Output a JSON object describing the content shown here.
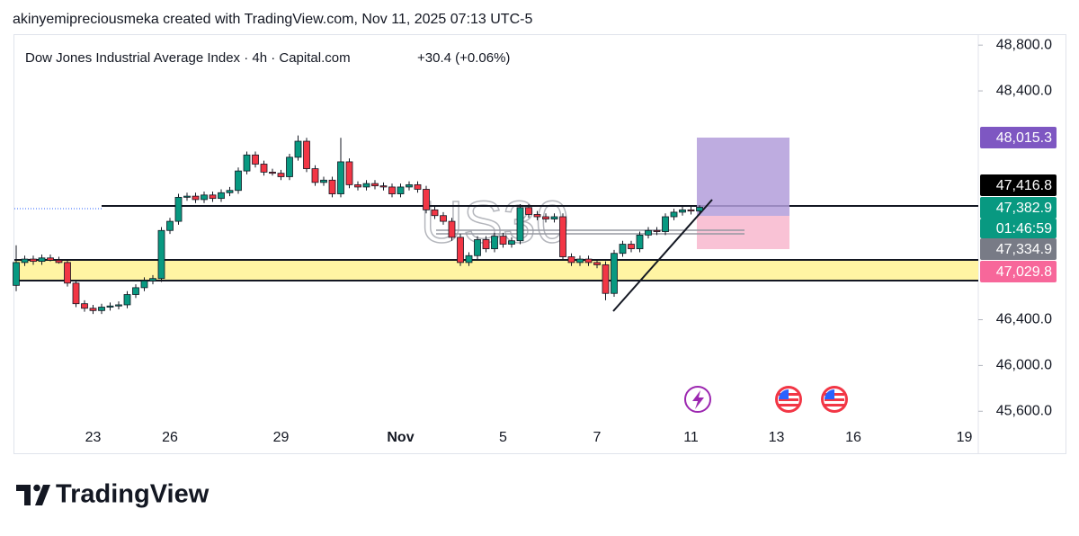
{
  "chart_data": {
    "type": "candlestick",
    "caption": "akinyemipreciousmeka created with TradingView.com, Nov 11, 2025 07:13 UTC-5",
    "title": "Dow Jones Industrial Average Index · 4h · Capital.com",
    "change": "+30.4 (+0.06%)",
    "watermark": "US30",
    "up_color": "#089981",
    "down_color": "#f23645",
    "categories": [
      null,
      null,
      null,
      null,
      null,
      null,
      null,
      null,
      null,
      "23",
      null,
      null,
      null,
      null,
      null,
      null,
      null,
      null,
      "26",
      null,
      null,
      null,
      null,
      null,
      null,
      null,
      null,
      null,
      null,
      null,
      null,
      "29",
      null,
      null,
      null,
      null,
      null,
      null,
      null,
      null,
      null,
      null,
      null,
      null,
      null,
      "Nov",
      null,
      null,
      null,
      null,
      null,
      null,
      null,
      null,
      null,
      null,
      null,
      "5",
      null,
      null,
      null,
      null,
      null,
      null,
      null,
      null,
      null,
      null,
      "7",
      null,
      null,
      null,
      null,
      null,
      null,
      null,
      null,
      null,
      null,
      "11",
      null,
      null,
      null,
      null,
      null,
      null,
      null,
      null,
      null,
      "13",
      null,
      null,
      null,
      null,
      null,
      null,
      null,
      null,
      "16",
      null,
      null,
      null,
      null,
      null,
      null,
      null,
      null,
      null,
      null,
      null,
      null,
      "19"
    ],
    "open": [
      46700,
      46900,
      46930,
      46910,
      46940,
      46920,
      46900,
      46720,
      46540,
      46500,
      46480,
      46510,
      46520,
      46530,
      46620,
      46680,
      46740,
      46760,
      47180,
      47260,
      47470,
      47480,
      47450,
      47490,
      47460,
      47510,
      47530,
      47700,
      47840,
      47760,
      47690,
      47680,
      47650,
      47820,
      47960,
      47720,
      47600,
      47620,
      47500,
      47780,
      47580,
      47560,
      47590,
      47570,
      47560,
      47500,
      47560,
      47580,
      47540,
      47360,
      47310,
      47260,
      47120,
      46900,
      46960,
      47100,
      47020,
      47130,
      47060,
      47090,
      47380,
      47320,
      47300,
      47280,
      47300,
      46950,
      46900,
      46930,
      46900,
      46880,
      46630,
      46980,
      47060,
      47020,
      47140,
      47180,
      47170,
      47300,
      47340,
      47360,
      47350,
      null,
      null,
      null,
      null,
      null,
      null,
      null,
      null,
      null,
      null,
      null,
      null,
      null,
      null,
      null,
      null,
      null,
      null,
      null,
      null,
      null,
      null,
      null,
      null,
      null,
      null,
      null,
      null,
      null,
      null,
      null
    ],
    "high": [
      47050,
      46960,
      46960,
      46970,
      46970,
      46950,
      46930,
      46750,
      46570,
      46530,
      46540,
      46550,
      46560,
      46650,
      46710,
      46770,
      46790,
      47210,
      47290,
      47500,
      47510,
      47510,
      47520,
      47520,
      47540,
      47560,
      47730,
      47870,
      47870,
      47790,
      47720,
      47710,
      47850,
      48010,
      47990,
      47750,
      47650,
      47650,
      47990,
      47810,
      47610,
      47620,
      47620,
      47600,
      47590,
      47590,
      47610,
      47610,
      47570,
      47390,
      47340,
      47290,
      47150,
      46990,
      47130,
      47130,
      47160,
      47160,
      47120,
      47410,
      47410,
      47350,
      47330,
      47330,
      47330,
      46980,
      46960,
      46960,
      46930,
      46910,
      47010,
      47090,
      47090,
      47170,
      47210,
      47210,
      47330,
      47370,
      47390,
      47390,
      47400,
      null,
      null,
      null,
      null,
      null,
      null,
      null,
      null,
      null,
      null,
      null,
      null,
      null,
      null,
      null,
      null,
      null,
      null,
      null,
      null,
      null,
      null,
      null,
      null,
      null,
      null,
      null,
      null,
      null,
      null,
      null
    ],
    "low": [
      46650,
      46870,
      46880,
      46880,
      46910,
      46890,
      46690,
      46510,
      46470,
      46450,
      46450,
      46480,
      46490,
      46500,
      46590,
      46650,
      46710,
      46730,
      47150,
      47230,
      47440,
      47420,
      47420,
      47430,
      47430,
      47480,
      47500,
      47670,
      47730,
      47660,
      47660,
      47620,
      47620,
      47790,
      47690,
      47570,
      47570,
      47470,
      47470,
      47550,
      47530,
      47530,
      47540,
      47530,
      47470,
      47470,
      47530,
      47510,
      47330,
      47280,
      47230,
      47090,
      46870,
      46870,
      46930,
      46990,
      46990,
      47030,
      47030,
      47060,
      47290,
      47270,
      47250,
      47250,
      46920,
      46870,
      46870,
      46870,
      46850,
      46570,
      46600,
      46950,
      46990,
      46990,
      47110,
      47140,
      47140,
      47270,
      47310,
      47320,
      47330,
      null,
      null,
      null,
      null,
      null,
      null,
      null,
      null,
      null,
      null,
      null,
      null,
      null,
      null,
      null,
      null,
      null,
      null,
      null,
      null,
      null,
      null,
      null,
      null,
      null,
      null,
      null,
      null,
      null,
      null,
      null
    ],
    "close": [
      46900,
      46930,
      46910,
      46940,
      46920,
      46900,
      46720,
      46540,
      46500,
      46480,
      46510,
      46520,
      46530,
      46620,
      46680,
      46740,
      46760,
      47180,
      47260,
      47470,
      47480,
      47450,
      47490,
      47460,
      47510,
      47530,
      47700,
      47840,
      47760,
      47690,
      47680,
      47650,
      47820,
      47960,
      47720,
      47600,
      47620,
      47500,
      47780,
      47580,
      47560,
      47590,
      47570,
      47560,
      47500,
      47560,
      47580,
      47540,
      47360,
      47310,
      47260,
      47120,
      46900,
      46960,
      47100,
      47020,
      47130,
      47060,
      47090,
      47380,
      47320,
      47300,
      47280,
      47300,
      46950,
      46900,
      46930,
      46900,
      46880,
      46630,
      46980,
      47060,
      47020,
      47140,
      47180,
      47170,
      47300,
      47340,
      47360,
      47350,
      47382.9,
      null,
      null,
      null,
      null,
      null,
      null,
      null,
      null,
      null,
      null,
      null,
      null,
      null,
      null,
      null,
      null,
      null,
      null,
      null,
      null,
      null,
      null,
      null,
      null,
      null,
      null,
      null,
      null,
      null,
      null,
      null
    ],
    "ylim": [
      45500,
      48880
    ],
    "yticks": [
      {
        "value": 48800,
        "label": "48,800.0"
      },
      {
        "value": 48400,
        "label": "48,400.0"
      },
      {
        "value": 46400,
        "label": "46,400.0"
      },
      {
        "value": 46000,
        "label": "46,000.0"
      },
      {
        "value": 45600,
        "label": "45,600.0"
      }
    ],
    "price_labels": [
      {
        "label": "48,015.3",
        "color": "#7e57c2"
      },
      {
        "label": "47,416.8",
        "color": "#000000"
      },
      {
        "label": "47,382.9",
        "color": "#089981"
      },
      {
        "label": "01:46:59",
        "color": "#089981"
      },
      {
        "label": "47,334.9",
        "color": "#787b86"
      },
      {
        "label": "47,029.8",
        "color": "#f7679a"
      }
    ]
  },
  "footer": {
    "brand": "TradingView"
  }
}
